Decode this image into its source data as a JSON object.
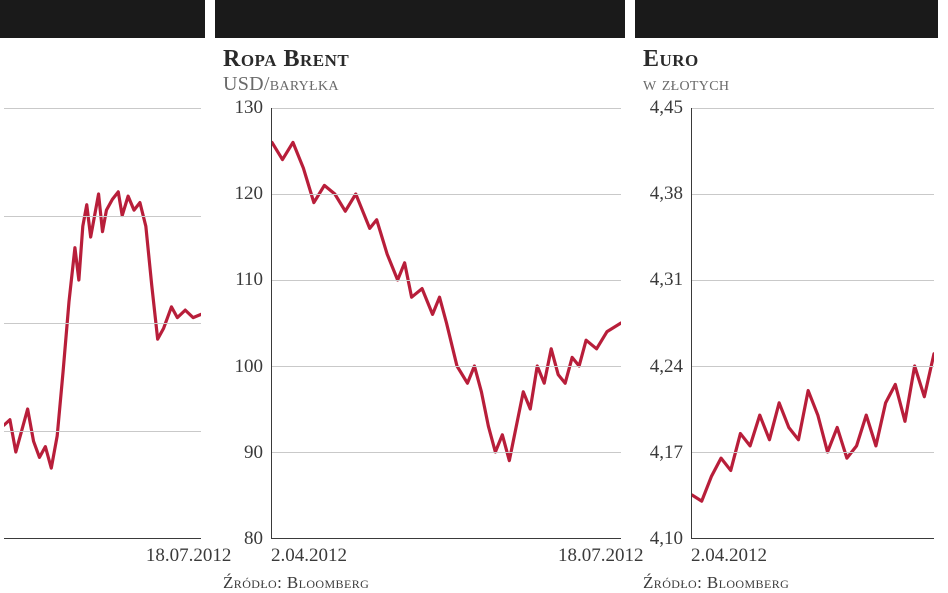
{
  "panels": [
    {
      "title": "",
      "subtitle": "",
      "source": "",
      "line_color": "#b81e3a",
      "line_width": 3.2,
      "grid_color": "#c9c9c9",
      "axis_color": "#3a3a3a",
      "background_color": "#ffffff",
      "ylim": [
        5,
        9
      ],
      "yticks": [
        5,
        6,
        7,
        8,
        9
      ],
      "ytick_labels": [
        "",
        "",
        "",
        "",
        ""
      ],
      "xticks": [
        0.72
      ],
      "xtick_labels": [
        "18.07.2012"
      ],
      "xtick_align": [
        "left"
      ],
      "series": [
        [
          0.0,
          6.05
        ],
        [
          0.03,
          6.1
        ],
        [
          0.06,
          5.8
        ],
        [
          0.09,
          6.0
        ],
        [
          0.12,
          6.2
        ],
        [
          0.15,
          5.9
        ],
        [
          0.18,
          5.75
        ],
        [
          0.21,
          5.85
        ],
        [
          0.24,
          5.65
        ],
        [
          0.27,
          5.95
        ],
        [
          0.3,
          6.55
        ],
        [
          0.33,
          7.2
        ],
        [
          0.36,
          7.7
        ],
        [
          0.38,
          7.4
        ],
        [
          0.4,
          7.9
        ],
        [
          0.42,
          8.1
        ],
        [
          0.44,
          7.8
        ],
        [
          0.46,
          8.0
        ],
        [
          0.48,
          8.2
        ],
        [
          0.5,
          7.85
        ],
        [
          0.52,
          8.05
        ],
        [
          0.55,
          8.15
        ],
        [
          0.58,
          8.22
        ],
        [
          0.6,
          8.0
        ],
        [
          0.63,
          8.18
        ],
        [
          0.66,
          8.05
        ],
        [
          0.69,
          8.12
        ],
        [
          0.72,
          7.9
        ],
        [
          0.75,
          7.35
        ],
        [
          0.78,
          6.85
        ],
        [
          0.81,
          6.95
        ],
        [
          0.85,
          7.15
        ],
        [
          0.88,
          7.05
        ],
        [
          0.92,
          7.12
        ],
        [
          0.96,
          7.05
        ],
        [
          1.0,
          7.08
        ]
      ]
    },
    {
      "title": "Ropa Brent",
      "subtitle": "USD/baryłka",
      "source": "Źródło: Bloomberg",
      "line_color": "#b81e3a",
      "line_width": 3.2,
      "grid_color": "#c9c9c9",
      "axis_color": "#3a3a3a",
      "background_color": "#ffffff",
      "ylim": [
        80,
        130
      ],
      "yticks": [
        80,
        90,
        100,
        110,
        120,
        130
      ],
      "ytick_labels": [
        "80",
        "90",
        "100",
        "110",
        "120",
        "130"
      ],
      "xticks": [
        0.0,
        0.82
      ],
      "xtick_labels": [
        "2.04.2012",
        "18.07.2012"
      ],
      "xtick_align": [
        "left",
        "left"
      ],
      "series": [
        [
          0.0,
          126
        ],
        [
          0.03,
          124
        ],
        [
          0.06,
          126
        ],
        [
          0.09,
          123
        ],
        [
          0.12,
          119
        ],
        [
          0.15,
          121
        ],
        [
          0.18,
          120
        ],
        [
          0.21,
          118
        ],
        [
          0.24,
          120
        ],
        [
          0.26,
          118
        ],
        [
          0.28,
          116
        ],
        [
          0.3,
          117
        ],
        [
          0.33,
          113
        ],
        [
          0.36,
          110
        ],
        [
          0.38,
          112
        ],
        [
          0.4,
          108
        ],
        [
          0.43,
          109
        ],
        [
          0.46,
          106
        ],
        [
          0.48,
          108
        ],
        [
          0.5,
          105
        ],
        [
          0.53,
          100
        ],
        [
          0.56,
          98
        ],
        [
          0.58,
          100
        ],
        [
          0.6,
          97
        ],
        [
          0.62,
          93
        ],
        [
          0.64,
          90
        ],
        [
          0.66,
          92
        ],
        [
          0.68,
          89
        ],
        [
          0.7,
          93
        ],
        [
          0.72,
          97
        ],
        [
          0.74,
          95
        ],
        [
          0.76,
          100
        ],
        [
          0.78,
          98
        ],
        [
          0.8,
          102
        ],
        [
          0.82,
          99
        ],
        [
          0.84,
          98
        ],
        [
          0.86,
          101
        ],
        [
          0.88,
          100
        ],
        [
          0.9,
          103
        ],
        [
          0.93,
          102
        ],
        [
          0.96,
          104
        ],
        [
          1.0,
          105
        ]
      ]
    },
    {
      "title": "Euro",
      "subtitle": "w złotych",
      "source": "Źródło: Bloomberg",
      "line_color": "#b81e3a",
      "line_width": 3.2,
      "grid_color": "#c9c9c9",
      "axis_color": "#3a3a3a",
      "background_color": "#ffffff",
      "ylim": [
        4.1,
        4.45
      ],
      "yticks": [
        4.1,
        4.17,
        4.24,
        4.31,
        4.38,
        4.45
      ],
      "ytick_labels": [
        "4,10",
        "4,17",
        "4,24",
        "4,31",
        "4,38",
        "4,45"
      ],
      "xticks": [
        0.0
      ],
      "xtick_labels": [
        "2.04.2012"
      ],
      "xtick_align": [
        "left"
      ],
      "series": [
        [
          0.0,
          4.135
        ],
        [
          0.04,
          4.13
        ],
        [
          0.08,
          4.15
        ],
        [
          0.12,
          4.165
        ],
        [
          0.16,
          4.155
        ],
        [
          0.2,
          4.185
        ],
        [
          0.24,
          4.175
        ],
        [
          0.28,
          4.2
        ],
        [
          0.32,
          4.18
        ],
        [
          0.36,
          4.21
        ],
        [
          0.4,
          4.19
        ],
        [
          0.44,
          4.18
        ],
        [
          0.48,
          4.22
        ],
        [
          0.52,
          4.2
        ],
        [
          0.56,
          4.17
        ],
        [
          0.6,
          4.19
        ],
        [
          0.64,
          4.165
        ],
        [
          0.68,
          4.175
        ],
        [
          0.72,
          4.2
        ],
        [
          0.76,
          4.175
        ],
        [
          0.8,
          4.21
        ],
        [
          0.84,
          4.225
        ],
        [
          0.88,
          4.195
        ],
        [
          0.92,
          4.24
        ],
        [
          0.96,
          4.215
        ],
        [
          1.0,
          4.25
        ]
      ]
    }
  ],
  "label_fontsize": 19,
  "title_fontsize": 24,
  "subtitle_fontsize": 20
}
